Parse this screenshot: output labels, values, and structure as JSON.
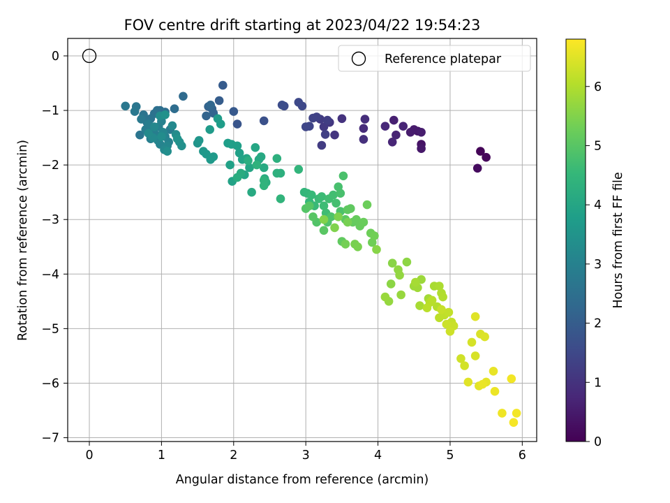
{
  "chart_data": {
    "type": "scatter",
    "title": "FOV centre drift starting at 2023/04/22 19:54:23",
    "xlabel": "Angular distance from reference (arcmin)",
    "ylabel": "Rotation from reference (arcmin)",
    "xlim": [
      -0.3,
      6.2
    ],
    "ylim": [
      -7.07,
      0.32
    ],
    "x_ticks": [
      0,
      1,
      2,
      3,
      4,
      5,
      6
    ],
    "y_ticks": [
      0,
      -1,
      -2,
      -3,
      -4,
      -5,
      -6,
      -7
    ],
    "grid": true,
    "legend": {
      "placement": "top-right",
      "entries": [
        "Reference platepar"
      ]
    },
    "reference_point": {
      "x": 0,
      "y": 0,
      "label": "Reference platepar"
    },
    "colorbar": {
      "label": "Hours from first FF file",
      "range": [
        0,
        6.8
      ],
      "ticks": [
        0,
        1,
        2,
        3,
        4,
        5,
        6
      ],
      "colormap": [
        "#440154",
        "#482878",
        "#3e4989",
        "#31688e",
        "#26828e",
        "#1f9e89",
        "#35b779",
        "#6ece58",
        "#b5de2b",
        "#fde725"
      ]
    },
    "series": [
      {
        "x": [
          5.42,
          5.5,
          5.38,
          4.6,
          4.55,
          4.6,
          4.5,
          4.45,
          4.6,
          4.22,
          4.25,
          4.35,
          4.2,
          4.1,
          3.8,
          3.82,
          3.8,
          3.5,
          3.4,
          3.33,
          3.25,
          3.2,
          3.22,
          3.3,
          3.27,
          3.15,
          3.1,
          3.05,
          3.0,
          2.95,
          2.9,
          2.7,
          2.67
        ],
        "y": [
          -1.75,
          -1.86,
          -2.06,
          -1.62,
          -1.38,
          -1.7,
          -1.35,
          -1.4,
          -1.4,
          -1.18,
          -1.45,
          -1.29,
          -1.58,
          -1.29,
          -1.33,
          -1.16,
          -1.53,
          -1.15,
          -1.45,
          -1.22,
          -1.3,
          -1.16,
          -1.64,
          -1.18,
          -1.44,
          -1.12,
          -1.14,
          -1.29,
          -1.3,
          -0.92,
          -0.85,
          -0.92,
          -0.9
        ],
        "hours": [
          0.06,
          0.1,
          0.2,
          0.35,
          0.4,
          0.45,
          0.5,
          0.52,
          0.55,
          0.6,
          0.65,
          0.7,
          0.72,
          0.78,
          0.85,
          0.9,
          0.93,
          1.0,
          1.05,
          1.1,
          1.15,
          1.2,
          1.22,
          1.25,
          1.3,
          1.35,
          1.38,
          1.4,
          1.45,
          1.48,
          1.5,
          1.55,
          1.6
        ]
      },
      {
        "x": [
          2.42,
          2.05,
          2.0,
          1.85,
          1.8,
          1.7,
          1.65,
          1.62,
          1.72,
          1.68,
          1.3,
          1.18,
          1.05,
          0.98,
          0.94,
          0.9,
          0.85,
          0.8,
          0.75,
          0.7,
          0.65,
          0.5,
          0.63,
          0.72,
          1.02,
          1.12,
          0.88,
          0.78,
          0.82,
          0.85,
          0.92,
          0.96,
          1.0,
          1.05,
          1.1,
          0.98,
          0.95,
          1.02,
          1.08,
          0.9,
          1.04,
          0.88,
          1.15,
          0.82,
          1.2,
          1.0,
          0.98,
          1.08,
          1.25,
          1.28,
          1.05,
          1.22
        ],
        "y": [
          -1.19,
          -1.25,
          -1.02,
          -0.54,
          -0.82,
          -0.97,
          -0.93,
          -1.1,
          -1.05,
          -0.9,
          -0.74,
          -0.97,
          -1.03,
          -1.0,
          -1.0,
          -1.06,
          -1.15,
          -1.22,
          -1.08,
          -1.45,
          -0.93,
          -0.92,
          -1.02,
          -1.16,
          -1.42,
          -1.35,
          -1.38,
          -1.35,
          -1.25,
          -1.52,
          -1.45,
          -1.3,
          -1.2,
          -1.48,
          -1.58,
          -1.62,
          -1.55,
          -1.4,
          -1.65,
          -1.3,
          -1.72,
          -1.5,
          -1.28,
          -1.42,
          -1.44,
          -1.48,
          -1.1,
          -1.75,
          -1.58,
          -1.65,
          -1.08,
          -1.52
        ],
        "hours": [
          1.7,
          1.8,
          1.9,
          1.95,
          2.0,
          2.1,
          2.15,
          2.18,
          2.2,
          2.25,
          2.35,
          2.4,
          2.45,
          2.48,
          2.5,
          2.55,
          2.58,
          2.6,
          2.62,
          2.65,
          2.68,
          2.7,
          2.72,
          2.75,
          2.78,
          2.8,
          2.82,
          2.85,
          2.88,
          2.9,
          2.92,
          2.95,
          2.98,
          3.0,
          3.02,
          3.05,
          3.08,
          3.1,
          3.12,
          3.15,
          3.18,
          3.2,
          3.22,
          3.25,
          3.28,
          3.3,
          3.32,
          3.35,
          3.38,
          3.4,
          3.42,
          3.45
        ]
      },
      {
        "x": [
          1.5,
          1.52,
          1.58,
          1.62,
          1.68,
          1.72,
          1.67,
          1.78,
          1.82,
          1.92,
          1.97,
          2.05,
          2.08,
          1.95,
          1.98,
          2.12,
          2.18,
          2.15,
          2.22,
          2.3,
          2.35,
          2.38,
          2.42,
          2.25,
          2.43,
          2.1,
          2.05,
          2.2,
          2.45,
          2.6,
          2.65,
          2.6,
          2.32,
          2.42,
          2.42,
          2.65,
          2.9,
          2.98,
          3.02,
          3.05,
          3.08,
          3.12,
          3.18,
          3.22,
          3.25,
          3.28,
          3.32,
          3.38,
          3.42,
          3.45,
          3.48,
          3.52,
          3.48,
          3.35,
          3.3,
          3.15,
          3.0,
          3.05,
          3.1,
          3.25,
          3.55,
          3.58,
          3.62,
          3.5,
          3.65,
          3.7,
          3.75,
          3.8,
          3.85,
          3.9,
          3.92,
          3.95,
          3.55,
          3.58,
          3.68,
          3.72,
          3.45,
          3.4,
          3.25
        ],
        "y": [
          -1.6,
          -1.55,
          -1.75,
          -1.8,
          -1.9,
          -1.85,
          -1.35,
          -1.15,
          -1.25,
          -1.6,
          -1.62,
          -1.65,
          -1.78,
          -2.0,
          -2.3,
          -1.9,
          -1.88,
          -2.18,
          -2.05,
          -1.68,
          -1.9,
          -1.85,
          -2.05,
          -2.5,
          -2.25,
          -2.15,
          -2.23,
          -1.92,
          -2.32,
          -1.88,
          -2.15,
          -2.15,
          -2.0,
          -2.28,
          -2.38,
          -2.62,
          -2.08,
          -2.5,
          -2.52,
          -2.68,
          -2.55,
          -2.75,
          -2.62,
          -2.58,
          -2.75,
          -2.88,
          -2.62,
          -2.55,
          -2.7,
          -2.4,
          -2.52,
          -2.2,
          -2.85,
          -2.95,
          -3.05,
          -3.05,
          -2.8,
          -2.75,
          -2.95,
          -3.2,
          -3.0,
          -2.82,
          -2.8,
          -3.4,
          -3.05,
          -3.0,
          -3.12,
          -3.05,
          -2.73,
          -3.25,
          -3.42,
          -3.3,
          -3.45,
          -3.05,
          -3.45,
          -3.5,
          -2.95,
          -3.15,
          -3.0
        ],
        "hours": [
          3.5,
          3.55,
          3.6,
          3.62,
          3.65,
          3.68,
          3.7,
          3.72,
          3.75,
          3.78,
          3.8,
          3.82,
          3.85,
          3.88,
          3.9,
          3.92,
          3.95,
          3.98,
          4.0,
          4.02,
          4.05,
          4.08,
          4.1,
          4.12,
          4.15,
          4.18,
          4.2,
          4.22,
          4.25,
          4.28,
          4.3,
          4.32,
          4.35,
          4.38,
          4.4,
          4.42,
          4.45,
          4.48,
          4.5,
          4.52,
          4.55,
          4.58,
          4.6,
          4.62,
          4.65,
          4.68,
          4.7,
          4.72,
          4.75,
          4.78,
          4.8,
          4.82,
          4.85,
          4.88,
          4.9,
          4.92,
          4.95,
          4.98,
          5.0,
          5.02,
          5.05,
          5.08,
          5.1,
          5.12,
          5.15,
          5.18,
          5.2,
          5.22,
          5.25,
          5.28,
          5.3,
          5.32,
          5.35,
          5.38,
          5.4,
          5.42,
          5.45,
          5.48,
          5.5
        ]
      },
      {
        "x": [
          3.98,
          4.2,
          4.18,
          4.4,
          4.28,
          4.3,
          4.15,
          4.32,
          4.1,
          4.6,
          4.5,
          4.55,
          4.7,
          4.52,
          4.58,
          4.78,
          4.85,
          4.88,
          4.9,
          4.82,
          4.72,
          4.75,
          4.68,
          4.85,
          4.92,
          4.98,
          5.02,
          4.88,
          5.05,
          4.95,
          5.0,
          5.15,
          5.2,
          5.3,
          5.35,
          5.42,
          5.48,
          5.35,
          5.25,
          5.4,
          5.5,
          5.6,
          5.45,
          5.62,
          5.72,
          5.85,
          5.92,
          5.88
        ],
        "y": [
          -3.55,
          -3.8,
          -4.18,
          -3.78,
          -3.92,
          -4.02,
          -4.5,
          -4.38,
          -4.42,
          -4.1,
          -4.22,
          -4.25,
          -4.45,
          -4.15,
          -4.58,
          -4.22,
          -4.22,
          -4.35,
          -4.42,
          -4.6,
          -4.52,
          -4.48,
          -4.62,
          -4.8,
          -4.75,
          -4.7,
          -4.88,
          -4.65,
          -4.95,
          -4.92,
          -5.05,
          -5.55,
          -5.68,
          -5.25,
          -5.5,
          -5.1,
          -5.15,
          -4.78,
          -5.98,
          -6.05,
          -5.98,
          -5.78,
          -6.02,
          -6.15,
          -6.55,
          -5.92,
          -6.55,
          -6.72
        ],
        "hours": [
          5.55,
          5.58,
          5.6,
          5.62,
          5.65,
          5.68,
          5.7,
          5.72,
          5.75,
          5.78,
          5.8,
          5.82,
          5.85,
          5.88,
          5.9,
          5.92,
          5.95,
          5.98,
          6.0,
          6.02,
          6.05,
          6.08,
          6.1,
          6.12,
          6.15,
          6.18,
          6.2,
          6.22,
          6.25,
          6.28,
          6.3,
          6.32,
          6.35,
          6.38,
          6.4,
          6.42,
          6.45,
          6.48,
          6.5,
          6.52,
          6.55,
          6.58,
          6.6,
          6.62,
          6.65,
          6.68,
          6.7,
          6.72
        ]
      }
    ]
  }
}
